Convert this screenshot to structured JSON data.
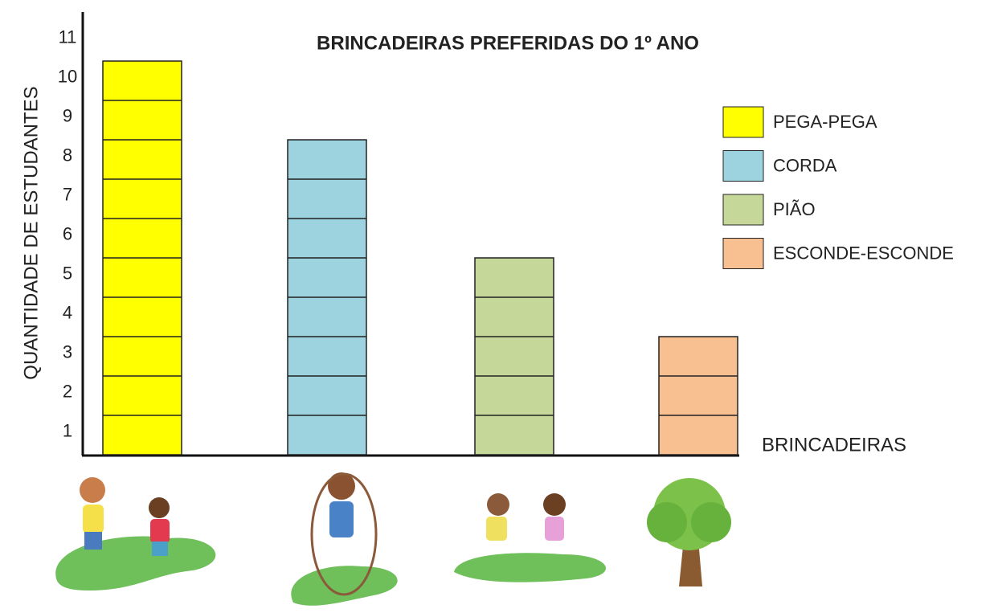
{
  "chart_data": {
    "type": "bar",
    "title": "BRINCADEIRAS PREFERIDAS DO 1º ANO",
    "y_label": "QUANTIDADE DE ESTUDANTES",
    "x_label": "BRINCADEIRAS",
    "categories": [
      "PEGA-PEGA",
      "CORDA",
      "PIÃO",
      "ESCONDE-ESCONDE"
    ],
    "values": [
      10,
      8,
      5,
      3
    ],
    "colors": [
      "#ffff00",
      "#9dd3df",
      "#c5d89a",
      "#f8bf90"
    ],
    "ylim": [
      0,
      11
    ],
    "yticks": [
      1,
      2,
      3,
      4,
      5,
      6,
      7,
      8,
      9,
      10,
      11
    ]
  }
}
